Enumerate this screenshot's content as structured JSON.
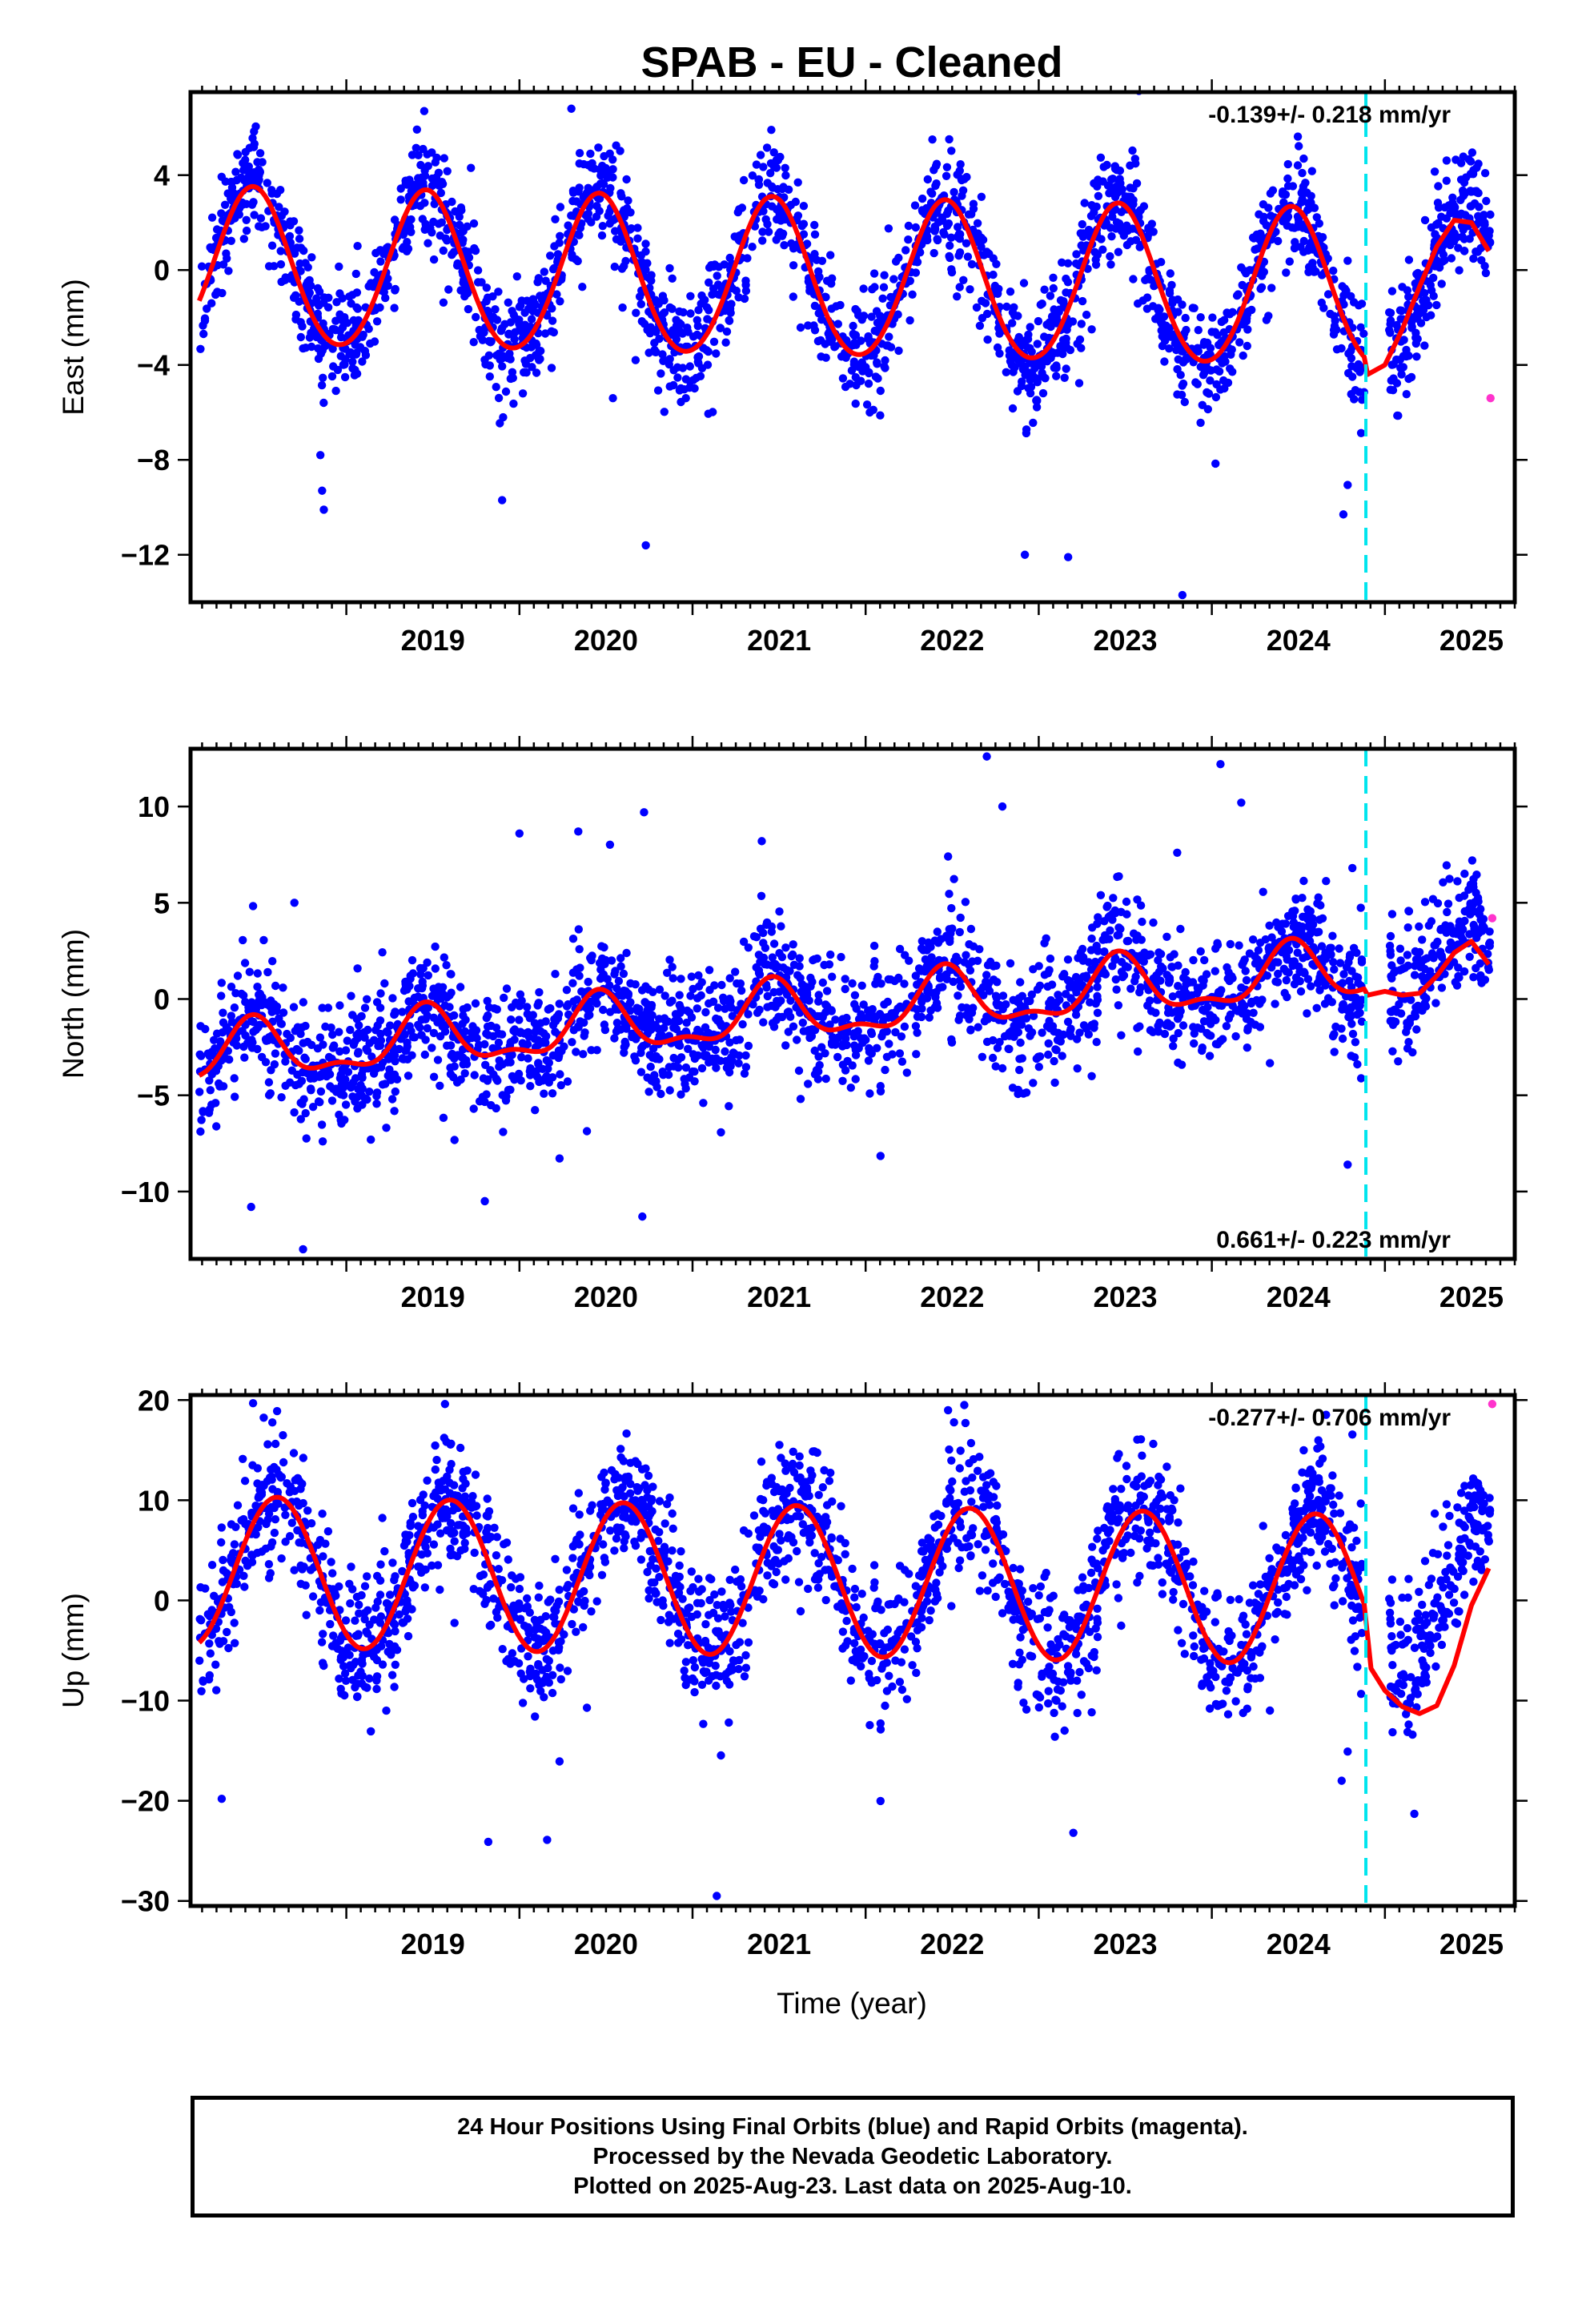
{
  "title": "SPAB  - EU - Cleaned",
  "xlabel": "Time (year)",
  "year_ticks": [
    "2019",
    "2020",
    "2021",
    "2022",
    "2023",
    "2024",
    "2025"
  ],
  "caption": [
    "24 Hour Positions Using Final Orbits (blue) and Rapid Orbits (magenta).",
    "Processed by the Nevada Geodetic Laboratory.",
    "Plotted on 2025-Aug-23. Last data on 2025-Aug-10."
  ],
  "colors": {
    "final_orbits": "#0000ff",
    "rapid_orbits": "#ff33cc",
    "model_fit": "#ff0000",
    "equipment_change": "#00e5ee"
  },
  "chart_data": [
    {
      "type": "scatter",
      "panel": "east",
      "ylabel": "East (mm)",
      "rate_text": "-0.139+/- 0.218 mm/yr",
      "rate_position": "top-right",
      "xlim": [
        2018.1,
        2025.75
      ],
      "ylim": [
        -14,
        7.5
      ],
      "yticks": [
        4,
        0,
        -4,
        -8,
        -12
      ],
      "ytick_labels": [
        "4",
        "0",
        "−4",
        "−8",
        "−12"
      ],
      "grid": false,
      "data_start": 2018.15,
      "data_end": 2025.61,
      "gap": [
        2024.88,
        2025.02
      ],
      "equipment_change_year": 2024.89,
      "model": {
        "offset": -0.4,
        "trend": -0.139,
        "annual_amp": 3.3,
        "annual_peak": 0.46,
        "semiannual_amp": 0.2
      },
      "scatter_sigma": 1.1,
      "n_points": 2400,
      "outliers": [
        [
          2018.87,
          -10.1
        ],
        [
          2018.86,
          -9.3
        ],
        [
          2018.85,
          -7.8
        ],
        [
          2019.9,
          -9.7
        ],
        [
          2020.73,
          -11.6
        ],
        [
          2022.92,
          -12.0
        ],
        [
          2023.17,
          -12.1
        ],
        [
          2023.83,
          -13.7
        ],
        [
          2024.76,
          -10.3
        ],
        [
          2019.45,
          6.7
        ],
        [
          2020.3,
          6.8
        ],
        [
          2020.54,
          -5.4
        ]
      ],
      "rapid_points": [
        [
          2025.61,
          -5.4
        ]
      ],
      "fit_after_gap": [
        [
          2024.9,
          -4.4
        ],
        [
          2025.0,
          -4.0
        ],
        [
          2025.1,
          -2.5
        ],
        [
          2025.2,
          -0.7
        ],
        [
          2025.3,
          1.0
        ],
        [
          2025.4,
          2.1
        ],
        [
          2025.5,
          2.0
        ],
        [
          2025.6,
          0.8
        ]
      ]
    },
    {
      "type": "scatter",
      "panel": "north",
      "ylabel": "North (mm)",
      "rate_text": "0.661+/- 0.223 mm/yr",
      "rate_position": "bottom-right",
      "xlim": [
        2018.1,
        2025.75
      ],
      "ylim": [
        -13.5,
        13
      ],
      "yticks": [
        10,
        5,
        0,
        -5,
        -10
      ],
      "ytick_labels": [
        "10",
        "5",
        "0",
        "−5",
        "−10"
      ],
      "grid": false,
      "data_start": 2018.15,
      "data_end": 2025.61,
      "gap": [
        2024.88,
        2025.02
      ],
      "equipment_change_year": 2024.89,
      "model": {
        "offset": -0.8,
        "trend": 0.661,
        "annual_amp": 1.4,
        "annual_peak": 0.46,
        "semiannual_amp": 0.6
      },
      "scatter_sigma": 1.5,
      "n_points": 2400,
      "outliers": [
        [
          2018.75,
          -13.0
        ],
        [
          2018.45,
          -10.8
        ],
        [
          2020.71,
          -11.3
        ],
        [
          2019.8,
          -10.5
        ],
        [
          2018.7,
          5.0
        ],
        [
          2020.0,
          8.6
        ],
        [
          2020.34,
          8.7
        ],
        [
          2020.72,
          9.7
        ],
        [
          2021.4,
          8.2
        ],
        [
          2022.7,
          12.6
        ],
        [
          2022.79,
          10.0
        ],
        [
          2024.05,
          12.2
        ],
        [
          2024.17,
          10.2
        ],
        [
          2023.8,
          7.6
        ]
      ],
      "rapid_points": [
        [
          2025.62,
          4.2
        ]
      ],
      "fit_after_gap": [
        [
          2024.9,
          0.2
        ],
        [
          2025.0,
          0.4
        ],
        [
          2025.1,
          0.2
        ],
        [
          2025.2,
          0.3
        ],
        [
          2025.3,
          1.2
        ],
        [
          2025.4,
          2.4
        ],
        [
          2025.5,
          3.0
        ],
        [
          2025.6,
          1.8
        ]
      ]
    },
    {
      "type": "scatter",
      "panel": "up",
      "ylabel": "Up (mm)",
      "rate_text": "-0.277+/- 0.706 mm/yr",
      "rate_position": "top-right",
      "xlim": [
        2018.1,
        2025.75
      ],
      "ylim": [
        -30.5,
        20.5
      ],
      "yticks": [
        20,
        10,
        0,
        -10,
        -20,
        -30
      ],
      "ytick_labels": [
        "20",
        "10",
        "0",
        "−10",
        "−20",
        "−30"
      ],
      "grid": false,
      "data_start": 2018.15,
      "data_end": 2025.61,
      "gap": [
        2024.88,
        2025.02
      ],
      "equipment_change_year": 2024.89,
      "model": {
        "offset": 2.0,
        "trend": -0.277,
        "annual_amp": 7.5,
        "annual_peak": 0.6,
        "semiannual_amp": 0.0
      },
      "scatter_sigma": 3.2,
      "n_points": 2400,
      "outliers": [
        [
          2018.6,
          18.9
        ],
        [
          2019.57,
          19.6
        ],
        [
          2022.57,
          19.5
        ],
        [
          2019.82,
          -24.1
        ],
        [
          2020.16,
          -23.9
        ],
        [
          2021.14,
          -29.5
        ],
        [
          2023.2,
          -23.2
        ],
        [
          2018.28,
          -19.8
        ],
        [
          2025.17,
          -21.3
        ],
        [
          2024.75,
          -18.0
        ]
      ],
      "rapid_points": [
        [
          2025.62,
          19.6
        ]
      ],
      "fit_after_gap": [
        [
          2024.92,
          -6.8
        ],
        [
          2025.0,
          -9.0
        ],
        [
          2025.1,
          -10.6
        ],
        [
          2025.2,
          -11.3
        ],
        [
          2025.3,
          -10.5
        ],
        [
          2025.4,
          -6.5
        ],
        [
          2025.5,
          -0.5
        ],
        [
          2025.6,
          3.2
        ]
      ]
    }
  ]
}
